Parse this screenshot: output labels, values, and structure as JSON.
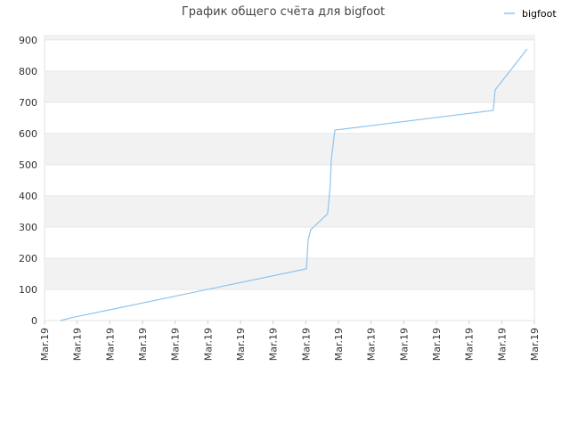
{
  "chart_data": {
    "type": "line",
    "title": "График общего счёта для bigfoot",
    "xlim": [
      0,
      15
    ],
    "xticks": [
      {
        "value": 0,
        "label": "Mar.19"
      },
      {
        "value": 1,
        "label": "Mar.19"
      },
      {
        "value": 2,
        "label": "Mar.19"
      },
      {
        "value": 3,
        "label": "Mar.19"
      },
      {
        "value": 4,
        "label": "Mar.19"
      },
      {
        "value": 5,
        "label": "Mar.19"
      },
      {
        "value": 6,
        "label": "Mar.19"
      },
      {
        "value": 7,
        "label": "Mar.19"
      },
      {
        "value": 8,
        "label": "Mar.19"
      },
      {
        "value": 9,
        "label": "Mar.19"
      },
      {
        "value": 10,
        "label": "Mar.19"
      },
      {
        "value": 11,
        "label": "Mar.19"
      },
      {
        "value": 12,
        "label": "Mar.19"
      },
      {
        "value": 13,
        "label": "Mar.19"
      },
      {
        "value": 14,
        "label": "Mar.19"
      },
      {
        "value": 15,
        "label": "Mar.19"
      }
    ],
    "ylim": [
      0,
      914
    ],
    "yticks": [
      0,
      100,
      200,
      300,
      400,
      500,
      600,
      700,
      800,
      900
    ],
    "band_shading": true,
    "legend": "top-right",
    "series": [
      {
        "name": "bigfoot",
        "color": "#8ec4ee",
        "x": [
          0.49,
          0.82,
          8.02,
          8.07,
          8.15,
          8.67,
          8.75,
          8.78,
          8.89,
          13.74,
          13.8,
          14.78
        ],
        "values": [
          0,
          9,
          166,
          257,
          291,
          343,
          434,
          514,
          611,
          674,
          740,
          871
        ]
      }
    ]
  }
}
